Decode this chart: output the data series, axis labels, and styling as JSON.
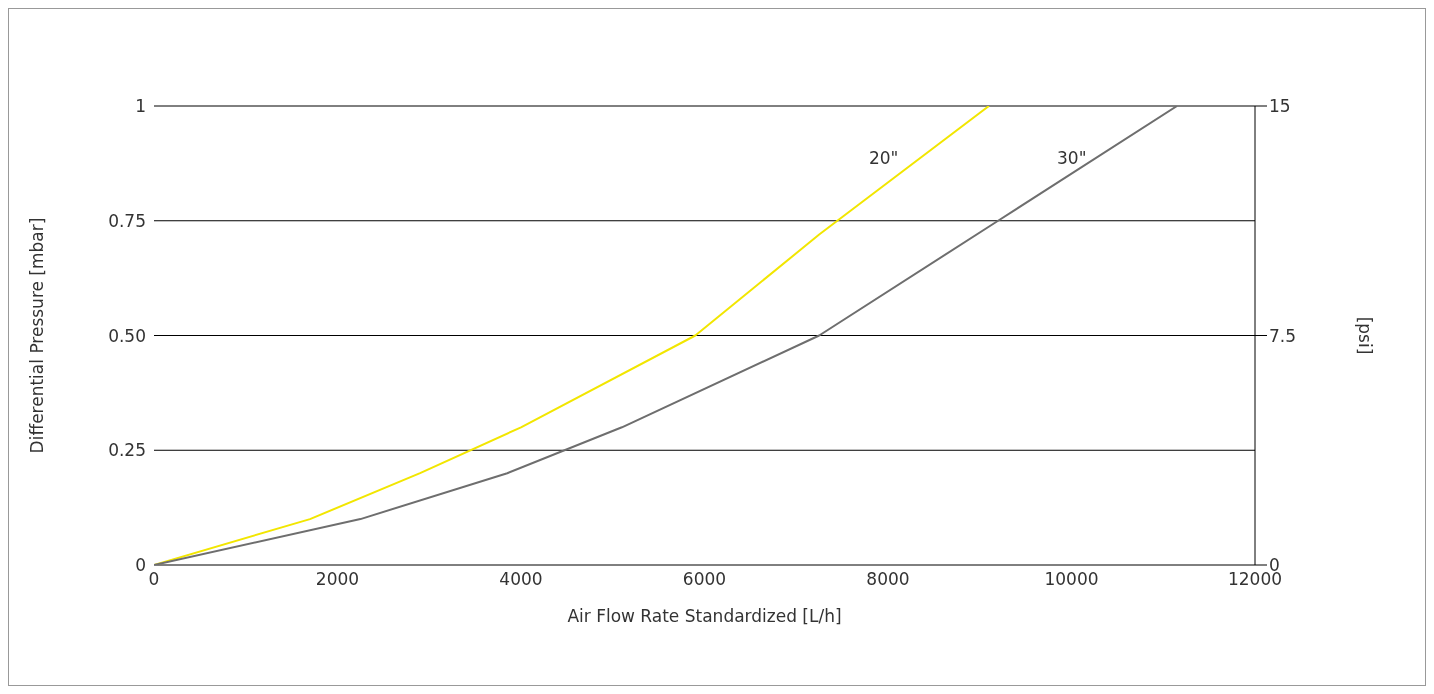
{
  "chart_data": {
    "type": "line",
    "xlabel": "Air Flow Rate Standardized [L/h]",
    "ylabel": "Differential Pressure [mbar]",
    "y2label": "[psi]",
    "series": [
      {
        "name": "20\"",
        "color": "#f2e600",
        "x": [
          0,
          1700,
          2900,
          4000,
          5900,
          7250,
          9100
        ],
        "values": [
          0,
          0.1,
          0.2,
          0.3,
          0.5,
          0.72,
          1
        ]
      },
      {
        "name": "30\"",
        "color": "#6e6e6e",
        "x": [
          0,
          2250,
          3850,
          5100,
          7250,
          9200,
          11150
        ],
        "values": [
          0,
          0.1,
          0.2,
          0.3,
          0.5,
          0.75,
          1
        ]
      }
    ],
    "xlim": [
      0,
      12000
    ],
    "xticks": [
      0,
      2000,
      4000,
      6000,
      8000,
      10000,
      12000
    ],
    "ylim": [
      0,
      1
    ],
    "yticks": [
      0,
      0.25,
      {
        "value": 0.5,
        "label": "0.50"
      },
      0.75,
      1
    ],
    "y2lim": [
      0,
      15
    ],
    "y2ticks": [
      0,
      7.5,
      15
    ],
    "grid": "y"
  }
}
